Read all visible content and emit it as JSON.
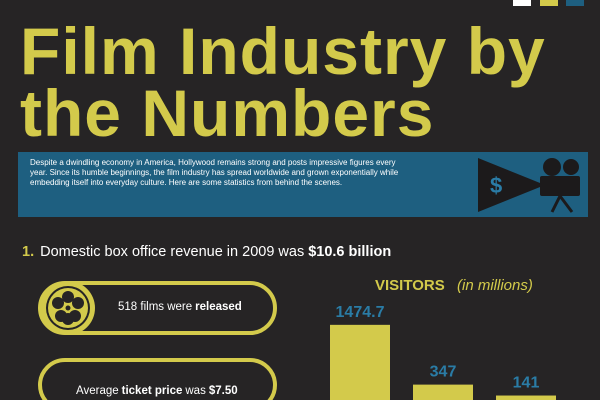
{
  "header": {
    "title_line1": "Film Industry by",
    "title_line2": "the Numbers"
  },
  "intro": "Despite a dwindling economy in America, Hollywood remains strong and posts impressive figures every year.  Since its humble beginnings, the film industry has spread worldwide and grown exponentially while embedding itself into everyday culture.  Here are some statistics from behind the scenes.",
  "banner_icon": "$",
  "fact1": {
    "number": "1.",
    "text": "Domestic box office revenue in 2009 was",
    "highlight": "$10.6 billion"
  },
  "films": {
    "count": "518",
    "text": "films were",
    "bold": "released"
  },
  "ticket": {
    "pre": "Average",
    "bold1": "ticket price",
    "mid": "was",
    "bold2": "$7.50"
  },
  "chart_data": {
    "type": "bar",
    "title": "VISITORS",
    "subtitle": "(in millions)",
    "values": [
      1474.7,
      347,
      141
    ],
    "color": "#d3ca4b",
    "label_color": "#2a7ca6"
  }
}
